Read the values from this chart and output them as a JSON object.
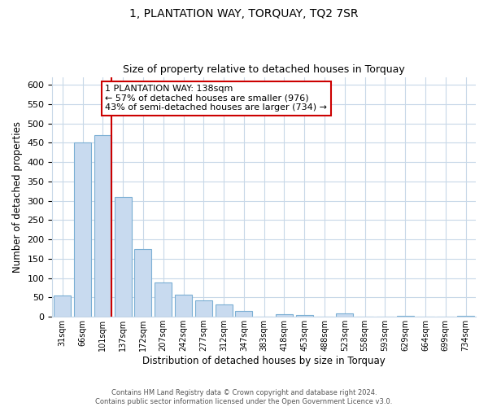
{
  "title": "1, PLANTATION WAY, TORQUAY, TQ2 7SR",
  "subtitle": "Size of property relative to detached houses in Torquay",
  "xlabel": "Distribution of detached houses by size in Torquay",
  "ylabel": "Number of detached properties",
  "bar_color": "#c8daef",
  "bar_edge_color": "#7bafd4",
  "grid_color": "#c8d8e8",
  "marker_line_color": "#cc0000",
  "annotation_box_edge": "#cc0000",
  "bin_labels": [
    "31sqm",
    "66sqm",
    "101sqm",
    "137sqm",
    "172sqm",
    "207sqm",
    "242sqm",
    "277sqm",
    "312sqm",
    "347sqm",
    "383sqm",
    "418sqm",
    "453sqm",
    "488sqm",
    "523sqm",
    "558sqm",
    "593sqm",
    "629sqm",
    "664sqm",
    "699sqm",
    "734sqm"
  ],
  "bar_heights": [
    55,
    450,
    470,
    310,
    175,
    88,
    58,
    42,
    32,
    15,
    0,
    7,
    5,
    0,
    8,
    0,
    0,
    2,
    0,
    0,
    2
  ],
  "marker_bin_index": 2,
  "ylim": [
    0,
    620
  ],
  "yticks": [
    0,
    50,
    100,
    150,
    200,
    250,
    300,
    350,
    400,
    450,
    500,
    550,
    600
  ],
  "annotation_line1": "1 PLANTATION WAY: 138sqm",
  "annotation_line2": "← 57% of detached houses are smaller (976)",
  "annotation_line3": "43% of semi-detached houses are larger (734) →",
  "footnote1": "Contains HM Land Registry data © Crown copyright and database right 2024.",
  "footnote2": "Contains public sector information licensed under the Open Government Licence v3.0."
}
